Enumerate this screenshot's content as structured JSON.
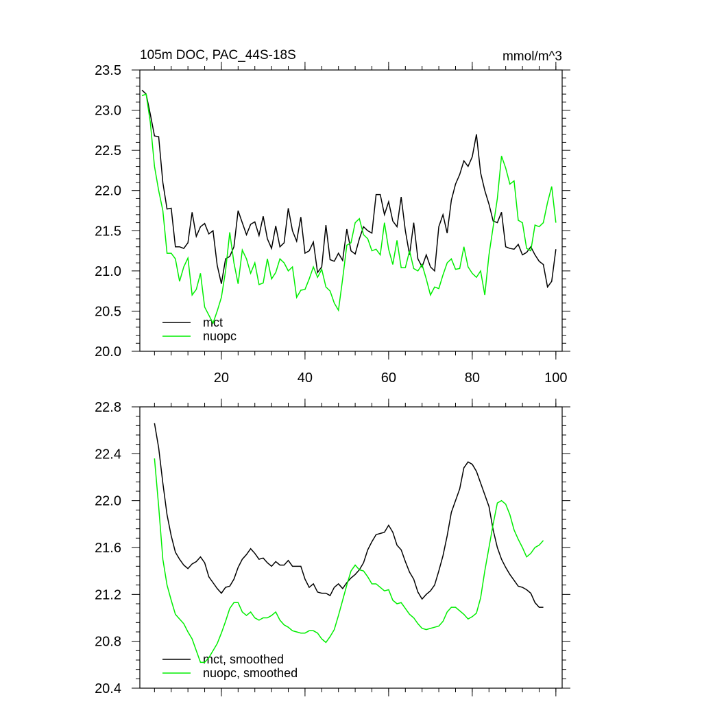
{
  "chart_data": [
    {
      "type": "line",
      "title": "105m DOC, PAC_44S-18S",
      "units": "mmol/m^3",
      "x": [
        1,
        2,
        3,
        4,
        5,
        6,
        7,
        8,
        9,
        10,
        11,
        12,
        13,
        14,
        15,
        16,
        17,
        18,
        19,
        20,
        21,
        22,
        23,
        24,
        25,
        26,
        27,
        28,
        29,
        30,
        31,
        32,
        33,
        34,
        35,
        36,
        37,
        38,
        39,
        40,
        41,
        42,
        43,
        44,
        45,
        46,
        47,
        48,
        49,
        50,
        51,
        52,
        53,
        54,
        55,
        56,
        57,
        58,
        59,
        60,
        61,
        62,
        63,
        64,
        65,
        66,
        67,
        68,
        69,
        70,
        71,
        72,
        73,
        74,
        75,
        76,
        77,
        78,
        79,
        80,
        81,
        82,
        83,
        84,
        85,
        86,
        87,
        88,
        89,
        90,
        91,
        92,
        93,
        94,
        95,
        96,
        97,
        98,
        99,
        100
      ],
      "series": [
        {
          "name": "mct",
          "color": "#000000",
          "values": [
            23.25,
            23.2,
            22.95,
            22.68,
            22.67,
            22.1,
            21.77,
            21.78,
            21.3,
            21.3,
            21.28,
            21.35,
            21.73,
            21.43,
            21.55,
            21.59,
            21.46,
            21.5,
            21.07,
            20.84,
            21.15,
            21.18,
            21.3,
            21.75,
            21.6,
            21.45,
            21.58,
            21.61,
            21.44,
            21.68,
            21.4,
            21.28,
            21.56,
            21.3,
            21.35,
            21.78,
            21.5,
            21.37,
            21.67,
            21.22,
            21.25,
            21.36,
            20.98,
            21.05,
            21.57,
            21.14,
            21.12,
            21.22,
            21.13,
            21.52,
            21.25,
            21.21,
            21.4,
            21.55,
            21.5,
            21.47,
            21.95,
            21.95,
            21.7,
            21.86,
            21.62,
            21.55,
            21.92,
            21.5,
            21.2,
            21.6,
            21.15,
            21.05,
            21.2,
            21.05,
            21.0,
            21.55,
            21.7,
            21.47,
            21.88,
            22.08,
            22.2,
            22.37,
            22.3,
            22.42,
            22.7,
            22.22,
            22.0,
            21.83,
            21.62,
            21.6,
            21.73,
            21.3,
            21.28,
            21.27,
            21.33,
            21.2,
            21.23,
            21.3,
            21.2,
            21.12,
            21.08,
            20.8,
            20.87,
            21.27
          ]
        },
        {
          "name": "nuopc",
          "color": "#00ee00",
          "values": [
            23.18,
            23.2,
            22.85,
            22.3,
            22.0,
            21.75,
            21.22,
            21.22,
            21.15,
            20.87,
            21.05,
            21.16,
            20.7,
            20.77,
            20.97,
            20.55,
            20.45,
            20.35,
            20.5,
            20.67,
            21.0,
            21.48,
            21.1,
            20.84,
            21.26,
            21.15,
            20.97,
            21.1,
            20.83,
            20.85,
            21.15,
            20.9,
            20.98,
            21.15,
            21.1,
            21.0,
            21.05,
            20.67,
            20.76,
            20.77,
            20.9,
            21.05,
            20.92,
            21.02,
            20.8,
            20.75,
            20.6,
            20.51,
            20.9,
            21.32,
            21.35,
            21.6,
            21.65,
            21.45,
            21.4,
            21.25,
            21.27,
            21.2,
            21.6,
            21.27,
            21.08,
            21.38,
            21.04,
            21.04,
            21.25,
            21.03,
            21.0,
            21.08,
            20.9,
            20.7,
            20.8,
            20.78,
            20.95,
            21.1,
            21.15,
            21.02,
            21.03,
            21.3,
            21.05,
            20.97,
            20.92,
            21.0,
            20.7,
            21.2,
            21.55,
            21.9,
            22.43,
            22.28,
            22.08,
            22.12,
            21.63,
            21.6,
            21.28,
            21.25,
            21.57,
            21.55,
            21.6,
            21.85,
            22.05,
            21.6
          ]
        }
      ],
      "xlim": [
        0.5,
        101.5
      ],
      "xticks": [
        20,
        40,
        60,
        80,
        100
      ],
      "xtick_labels": true,
      "ylim": [
        20.0,
        23.5
      ],
      "yticks": [
        {
          "value": 20.0,
          "label": "20.0"
        },
        20.5,
        {
          "value": 21.0,
          "label": "21.0"
        },
        21.5,
        {
          "value": 22.0,
          "label": "22.0"
        },
        22.5,
        {
          "value": 23.0,
          "label": "23.0"
        },
        23.5
      ]
    },
    {
      "type": "line",
      "x": [
        4,
        5,
        6,
        7,
        8,
        9,
        10,
        11,
        12,
        13,
        14,
        15,
        16,
        17,
        18,
        19,
        20,
        21,
        22,
        23,
        24,
        25,
        26,
        27,
        28,
        29,
        30,
        31,
        32,
        33,
        34,
        35,
        36,
        37,
        38,
        39,
        40,
        41,
        42,
        43,
        44,
        45,
        46,
        47,
        48,
        49,
        50,
        51,
        52,
        53,
        54,
        55,
        56,
        57,
        58,
        59,
        60,
        61,
        62,
        63,
        64,
        65,
        66,
        67,
        68,
        69,
        70,
        71,
        72,
        73,
        74,
        75,
        76,
        77,
        78,
        79,
        80,
        81,
        82,
        83,
        84,
        85,
        86,
        87,
        88,
        89,
        90,
        91,
        92,
        93,
        94,
        95,
        96,
        97
      ],
      "series": [
        {
          "name": "mct, smoothed",
          "color": "#000000",
          "values": [
            22.66,
            22.45,
            22.15,
            21.88,
            21.7,
            21.56,
            21.5,
            21.45,
            21.42,
            21.46,
            21.48,
            21.52,
            21.47,
            21.35,
            21.3,
            21.25,
            21.21,
            21.26,
            21.27,
            21.33,
            21.43,
            21.5,
            21.54,
            21.59,
            21.55,
            21.5,
            21.51,
            21.47,
            21.44,
            21.48,
            21.45,
            21.45,
            21.49,
            21.44,
            21.44,
            21.44,
            21.33,
            21.26,
            21.29,
            21.22,
            21.21,
            21.21,
            21.19,
            21.26,
            21.29,
            21.25,
            21.3,
            21.34,
            21.37,
            21.41,
            21.47,
            21.58,
            21.65,
            21.71,
            21.72,
            21.73,
            21.79,
            21.73,
            21.62,
            21.58,
            21.48,
            21.39,
            21.33,
            21.22,
            21.16,
            21.2,
            21.23,
            21.28,
            21.4,
            21.53,
            21.7,
            21.9,
            22.0,
            22.1,
            22.28,
            22.33,
            22.31,
            22.25,
            22.15,
            22.05,
            21.95,
            21.75,
            21.6,
            21.5,
            21.43,
            21.37,
            21.32,
            21.27,
            21.26,
            21.24,
            21.21,
            21.13,
            21.09,
            21.09
          ]
        },
        {
          "name": "nuopc, smoothed",
          "color": "#00ee00",
          "values": [
            22.36,
            21.95,
            21.5,
            21.28,
            21.15,
            21.03,
            20.99,
            20.95,
            20.88,
            20.82,
            20.72,
            20.62,
            20.62,
            20.66,
            20.72,
            20.78,
            20.87,
            20.97,
            21.08,
            21.13,
            21.13,
            21.05,
            21.02,
            21.05,
            21.0,
            20.98,
            21.0,
            21.0,
            21.02,
            21.05,
            20.98,
            20.94,
            20.92,
            20.89,
            20.88,
            20.87,
            20.87,
            20.89,
            20.89,
            20.87,
            20.82,
            20.79,
            20.84,
            20.9,
            21.02,
            21.15,
            21.28,
            21.4,
            21.45,
            21.41,
            21.4,
            21.35,
            21.29,
            21.29,
            21.26,
            21.23,
            21.24,
            21.15,
            21.12,
            21.13,
            21.08,
            21.03,
            21.0,
            20.95,
            20.91,
            20.9,
            20.91,
            20.92,
            20.93,
            20.97,
            21.05,
            21.09,
            21.09,
            21.06,
            21.03,
            20.99,
            21.01,
            21.04,
            21.17,
            21.4,
            21.6,
            21.8,
            21.98,
            22.0,
            21.97,
            21.88,
            21.75,
            21.67,
            21.6,
            21.52,
            21.55,
            21.6,
            21.62,
            21.66
          ]
        }
      ],
      "xlim": [
        0.5,
        101.5
      ],
      "xticks": [
        20,
        40,
        60,
        80,
        100
      ],
      "xtick_labels": false,
      "ylim": [
        20.4,
        22.8
      ],
      "yticks": [
        20.4,
        20.8,
        21.2,
        21.6,
        {
          "value": 22.0,
          "label": "22.0"
        },
        22.4,
        22.8
      ]
    }
  ]
}
